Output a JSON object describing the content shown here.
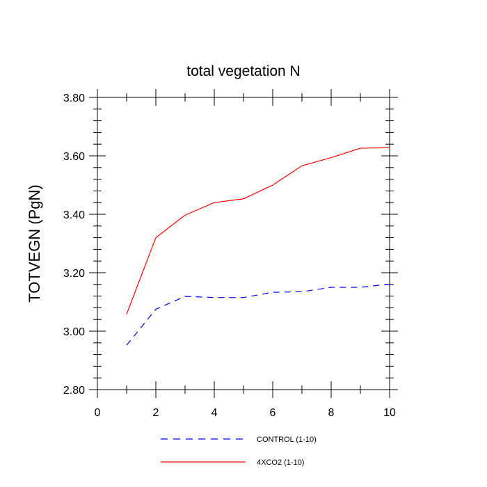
{
  "chart_data": {
    "type": "line",
    "title": "total vegetation N",
    "xlabel": "",
    "ylabel": "TOTVEGN  (PgN)",
    "xlim": [
      0,
      10
    ],
    "ylim": [
      2.8,
      3.8
    ],
    "x_ticks": [
      "0",
      "2",
      "4",
      "6",
      "8",
      "10"
    ],
    "y_ticks": [
      "2.80",
      "3.00",
      "3.20",
      "3.40",
      "3.60",
      "3.80"
    ],
    "x": [
      1,
      2,
      3,
      4,
      5,
      6,
      7,
      8,
      9,
      10
    ],
    "series": [
      {
        "name": "CONTROL (1-10)",
        "color": "#0000ff",
        "style": "dashed",
        "values": [
          2.952,
          3.075,
          3.119,
          3.115,
          3.115,
          3.133,
          3.135,
          3.15,
          3.15,
          3.161
        ]
      },
      {
        "name": "4XCO2 (1-10)",
        "color": "#ff0000",
        "style": "solid",
        "values": [
          3.058,
          3.32,
          3.397,
          3.44,
          3.453,
          3.5,
          3.566,
          3.594,
          3.626,
          3.628
        ]
      }
    ],
    "legend_position": "bottom"
  }
}
